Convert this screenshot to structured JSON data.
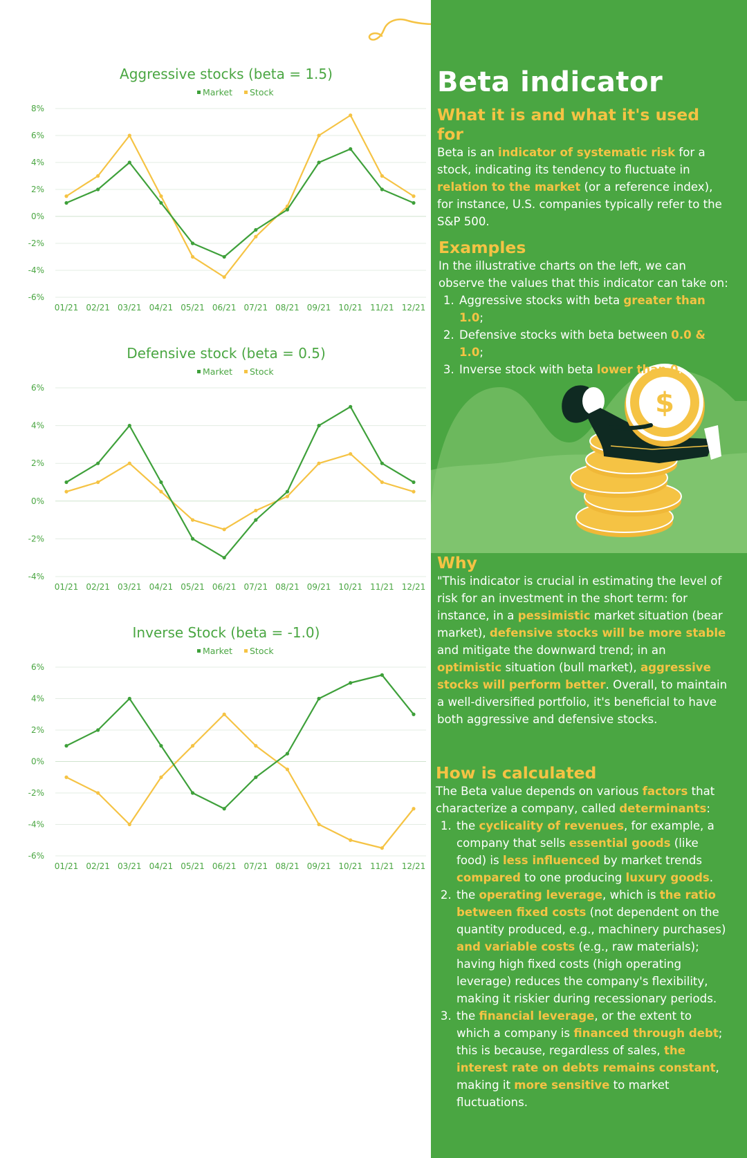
{
  "colors": {
    "panel": "#4aa642",
    "market": "#3ea03a",
    "stock": "#f5c344",
    "highlight": "#f5c344"
  },
  "chart_data": [
    {
      "type": "line",
      "title": "Aggressive stocks (beta = 1.5)",
      "categories": [
        "01/21",
        "02/21",
        "03/21",
        "04/21",
        "05/21",
        "06/21",
        "07/21",
        "08/21",
        "09/21",
        "10/21",
        "11/21",
        "12/21"
      ],
      "series": [
        {
          "name": "Market",
          "values": [
            1,
            2,
            4,
            1,
            -2,
            -3,
            -1,
            0.5,
            4,
            5,
            2,
            1
          ]
        },
        {
          "name": "Stock",
          "values": [
            1.5,
            3,
            6,
            1.5,
            -3,
            -4.5,
            -1.5,
            0.75,
            6,
            7.5,
            3,
            1.5
          ]
        }
      ],
      "ylim": [
        -6,
        8
      ],
      "yticks": [
        "8%",
        "6%",
        "4%",
        "2%",
        "0%",
        "-2%",
        "-4%",
        "-6%"
      ],
      "legend": {
        "position": "top",
        "labels": [
          "Market",
          "Stock"
        ]
      },
      "grid": true
    },
    {
      "type": "line",
      "title": "Defensive stock (beta = 0.5)",
      "categories": [
        "01/21",
        "02/21",
        "03/21",
        "04/21",
        "05/21",
        "06/21",
        "07/21",
        "08/21",
        "09/21",
        "10/21",
        "11/21",
        "12/21"
      ],
      "series": [
        {
          "name": "Market",
          "values": [
            1,
            2,
            4,
            1,
            -2,
            -3,
            -1,
            0.5,
            4,
            5,
            2,
            1
          ]
        },
        {
          "name": "Stock",
          "values": [
            0.5,
            1,
            2,
            0.5,
            -1,
            -1.5,
            -0.5,
            0.25,
            2,
            2.5,
            1,
            0.5
          ]
        }
      ],
      "ylim": [
        -4,
        6
      ],
      "yticks": [
        "6%",
        "4%",
        "2%",
        "0%",
        "-2%",
        "-4%"
      ],
      "legend": {
        "position": "top",
        "labels": [
          "Market",
          "Stock"
        ]
      },
      "grid": true
    },
    {
      "type": "line",
      "title": "Inverse Stock (beta = -1.0)",
      "categories": [
        "01/21",
        "02/21",
        "03/21",
        "04/21",
        "05/21",
        "06/21",
        "07/21",
        "08/21",
        "09/21",
        "10/21",
        "11/21",
        "12/21"
      ],
      "series": [
        {
          "name": "Market",
          "values": [
            1,
            2,
            4,
            1,
            -2,
            -3,
            -1,
            0.5,
            4,
            5,
            5.5,
            3
          ]
        },
        {
          "name": "Stock",
          "values": [
            -1,
            -2,
            -4,
            -1,
            1,
            3,
            1,
            -0.5,
            -4,
            -5,
            -5.5,
            -3
          ]
        }
      ],
      "ylim": [
        -6,
        6
      ],
      "yticks": [
        "6%",
        "4%",
        "2%",
        "0%",
        "-2%",
        "-4%",
        "-6%"
      ],
      "legend": {
        "position": "top",
        "labels": [
          "Market",
          "Stock"
        ]
      },
      "grid": true
    }
  ],
  "info": {
    "title": "Beta indicator",
    "what": {
      "heading": "What it is and what it's used for",
      "p1": "Beta is an ",
      "h1": "indicator of systematic risk",
      "p2": " for a stock, indicating its tendency to fluctuate in ",
      "h2": "relation to the market",
      "p3": " (or a reference index), for instance, U.S. companies typically refer to the S&P 500."
    },
    "examples": {
      "heading": "Examples",
      "intro": "In the illustrative charts on the left, we can observe the values that this indicator can take on:",
      "items": [
        {
          "pre": "Aggressive stocks with beta ",
          "hl": "greater than 1.0",
          "post": ";"
        },
        {
          "pre": "Defensive stocks with beta between ",
          "hl": "0.0 & 1.0",
          "post": ";"
        },
        {
          "pre": "Inverse stock with beta ",
          "hl": "lower than 0",
          "post": "."
        }
      ]
    },
    "why": {
      "heading": "Why",
      "t1": "\"This indicator is crucial in estimating the level of risk for an investment in the short term: for instance, in a ",
      "h1": "pessimistic",
      "t2": " market situation (bear market), ",
      "h2": "defensive stocks will be more stable",
      "t3": " and mitigate the downward trend; in an ",
      "h3": "optimistic",
      "t4": " situation (bull market), ",
      "h4": "aggressive stocks will perform better",
      "t5": ". Overall, to maintain a well-diversified portfolio, it's beneficial to have both aggressive and defensive stocks."
    },
    "how": {
      "heading": "How is calculated",
      "t1": "The Beta value depends on various ",
      "h1": "factors",
      "t2": " that characterize a company, called ",
      "h2": "determinants",
      "t3": ":",
      "item1": {
        "a": "the ",
        "b": "cyclicality of revenues",
        "c": ", for example, a company that sells ",
        "d": "essential goods",
        "e": " (like food) is ",
        "f": "less influenced",
        "g": " by market trends ",
        "h": "compared",
        "i": " to one producing ",
        "j": "luxury goods",
        "k": "."
      },
      "item2": {
        "a": "the ",
        "b": "operating leverage",
        "c": ", which is ",
        "d": "the ratio between fixed costs",
        "e": " (not dependent on the quantity produced, e.g., machinery purchases) ",
        "f": "and variable costs",
        "g": " (e.g., raw materials); having high fixed costs (high operating leverage) reduces the company's flexibility, making it riskier during recessionary periods."
      },
      "item3": {
        "a": "the ",
        "b": "financial leverage",
        "c": ", or the extent to which a company is ",
        "d": "financed through debt",
        "e": "; this is because, regardless of sales, ",
        "f": "the interest rate on debts remains constant",
        "g": ", making it ",
        "h": "more sensitive",
        "i": " to market fluctuations."
      }
    },
    "illustration": {
      "coin_symbol": "$",
      "icon": "person-hugging-coin-illustration"
    }
  }
}
